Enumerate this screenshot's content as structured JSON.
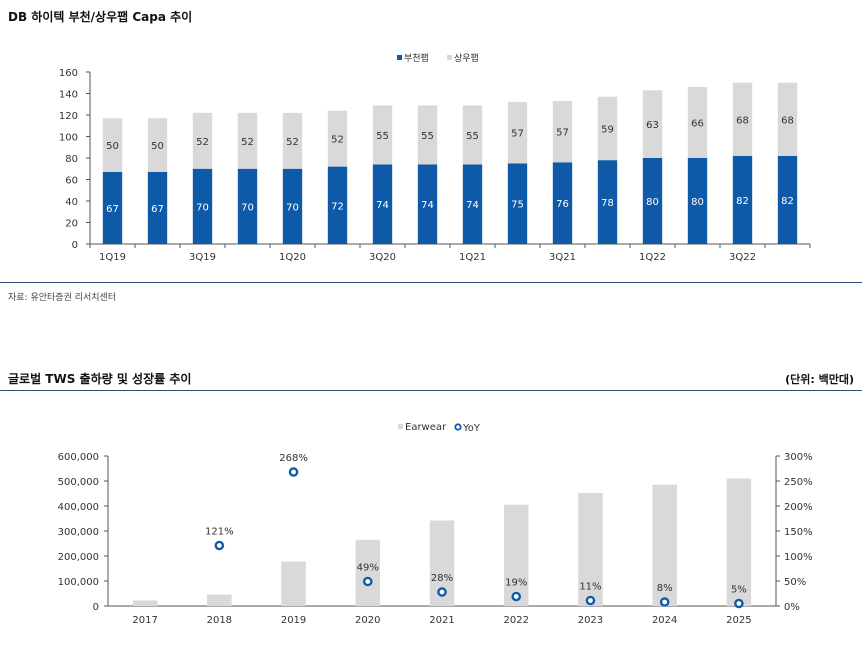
{
  "charts": [
    {
      "title": "DB 하이텍 부천/상우팹 Capa 추이",
      "source": "자료: 유안타증권 리서치센터",
      "chart_data": {
        "type": "bar",
        "stacked": true,
        "categories": [
          "1Q19",
          "2Q19",
          "3Q19",
          "4Q19",
          "1Q20",
          "2Q20",
          "3Q20",
          "4Q20",
          "1Q21",
          "2Q21",
          "3Q21",
          "4Q21",
          "1Q22",
          "2Q22",
          "3Q22",
          "4Q22"
        ],
        "tick_labels": [
          "1Q19",
          "",
          "3Q19",
          "",
          "1Q20",
          "",
          "3Q20",
          "",
          "1Q21",
          "",
          "3Q21",
          "",
          "1Q22",
          "",
          "3Q22",
          ""
        ],
        "series": [
          {
            "name": "부천팹",
            "color": "#0f5aa8",
            "values": [
              67,
              67,
              70,
              70,
              70,
              72,
              74,
              74,
              74,
              75,
              76,
              78,
              80,
              80,
              82,
              82
            ]
          },
          {
            "name": "상우팹",
            "color": "#d9d9d9",
            "values": [
              50,
              50,
              52,
              52,
              52,
              52,
              55,
              55,
              55,
              57,
              57,
              59,
              63,
              66,
              68,
              68
            ]
          }
        ],
        "ylim": [
          0,
          160
        ],
        "yticks": [
          0,
          20,
          40,
          60,
          80,
          100,
          120,
          140,
          160
        ],
        "legend_position": "top-right",
        "grid": false
      }
    },
    {
      "title": "글로벌 TWS 출하량 및 성장률 추이",
      "unit": "(단위: 백만대)",
      "chart_data": {
        "type": "bar",
        "categories": [
          "2017",
          "2018",
          "2019",
          "2020",
          "2021",
          "2022",
          "2023",
          "2024",
          "2025"
        ],
        "series": [
          {
            "name": "Earwear",
            "axis": "left",
            "type": "bar",
            "color": "#d9d9d9",
            "values": [
              22000,
              46000,
              178000,
              265000,
              342000,
              405000,
              452000,
              485000,
              510000
            ]
          },
          {
            "name": "YoY",
            "axis": "right",
            "type": "scatter",
            "color": "#0f5aa8",
            "values": [
              null,
              121,
              268,
              49,
              28,
              19,
              11,
              8,
              5
            ],
            "labels": [
              "",
              "121%",
              "268%",
              "49%",
              "28%",
              "19%",
              "11%",
              "8%",
              "5%"
            ]
          }
        ],
        "ylim_left": [
          0,
          600000
        ],
        "yticks_left": [
          "0",
          "100,000",
          "200,000",
          "300,000",
          "400,000",
          "500,000",
          "600,000"
        ],
        "ylim_right": [
          0,
          300
        ],
        "yticks_right": [
          "0%",
          "50%",
          "100%",
          "150%",
          "200%",
          "250%",
          "300%"
        ],
        "legend_position": "top-center",
        "grid": false
      }
    }
  ]
}
